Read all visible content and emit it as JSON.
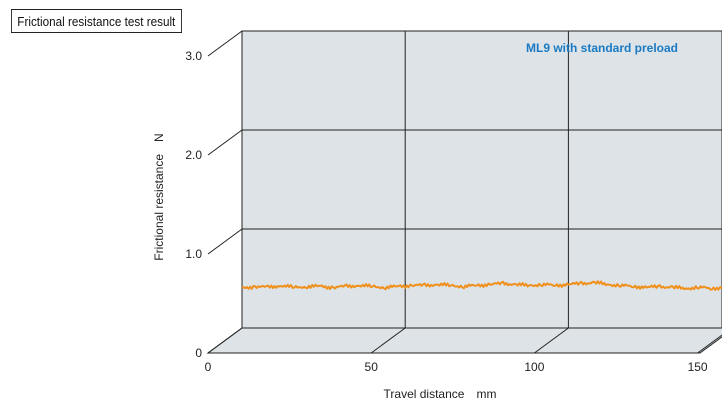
{
  "chart_data": {
    "type": "line",
    "title": "Frictional resistance test result",
    "xlabel": "Travel distance　mm",
    "ylabel": "Frictional resistance　N",
    "xlim": [
      0,
      160
    ],
    "ylim": [
      0,
      3.0
    ],
    "x_ticks": [
      "0",
      "50",
      "100",
      "150"
    ],
    "y_ticks": [
      "0",
      "1.0",
      "2.0",
      "3.0"
    ],
    "grid": true,
    "annotation": "ML9 with standard preload",
    "colors": {
      "series": "#f0901c",
      "annotation": "#1a7ac4",
      "plot_background": "#dde3e6"
    },
    "series": [
      {
        "x": [
          0,
          4,
          8,
          12,
          16,
          20,
          24,
          28,
          32,
          36,
          40,
          44,
          48,
          52,
          56,
          60,
          64,
          68,
          72,
          76,
          80,
          84,
          88,
          92,
          96,
          100,
          104,
          108,
          112,
          116,
          120,
          124,
          128,
          132,
          136,
          140,
          144,
          148,
          152,
          156,
          160
        ],
        "y": [
          0.4,
          0.42,
          0.41,
          0.43,
          0.41,
          0.42,
          0.42,
          0.41,
          0.42,
          0.43,
          0.42,
          0.41,
          0.42,
          0.43,
          0.43,
          0.44,
          0.43,
          0.42,
          0.43,
          0.44,
          0.45,
          0.44,
          0.43,
          0.44,
          0.43,
          0.44,
          0.45,
          0.46,
          0.44,
          0.43,
          0.42,
          0.41,
          0.42,
          0.41,
          0.4,
          0.41,
          0.4,
          0.41,
          0.41,
          0.42,
          0.41
        ]
      }
    ]
  }
}
